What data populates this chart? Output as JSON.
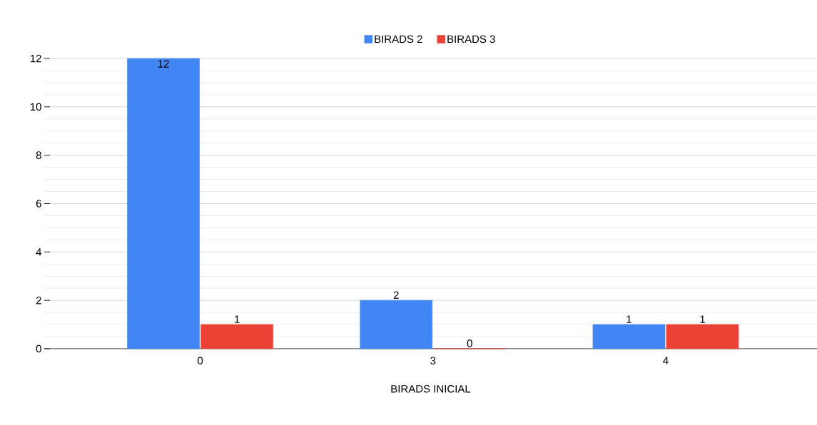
{
  "chart_data": {
    "type": "bar",
    "xlabel": "BIRADS INICIAL",
    "categories": [
      "0",
      "3",
      "4"
    ],
    "series": [
      {
        "name": "BIRADS 2",
        "color": "#4285f4",
        "values": [
          12,
          2,
          1
        ]
      },
      {
        "name": "BIRADS 3",
        "color": "#ea4335",
        "values": [
          1,
          0,
          1
        ]
      }
    ],
    "ylim": [
      0,
      12
    ],
    "yticks": [
      0,
      2,
      4,
      6,
      8,
      10,
      12
    ],
    "grid": "y",
    "legend": "top",
    "data_labels": true
  }
}
